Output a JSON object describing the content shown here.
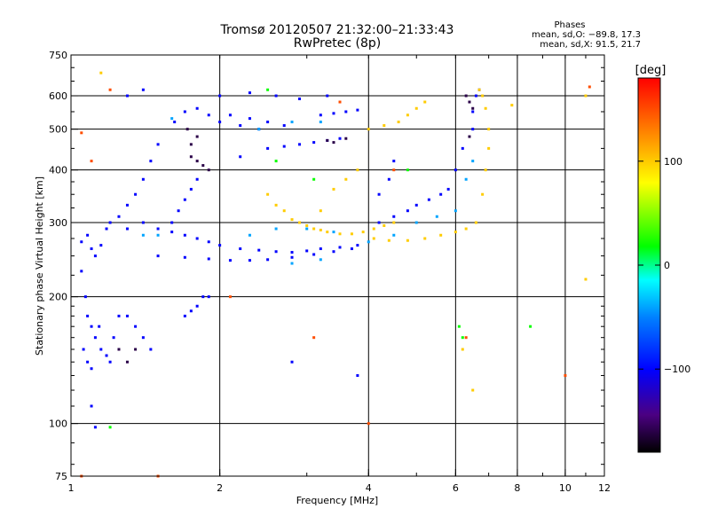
{
  "chart_data": {
    "type": "scatter",
    "title_line1": "Tromsø 20120507 21:32:00–21:33:43",
    "title_line2": "RwPretec (8p)",
    "xlabel": "Frequency [MHz]",
    "ylabel": "Stationary phase Virtual Height [km]",
    "x_scale": "log",
    "y_scale": "log",
    "xlim": [
      1,
      12
    ],
    "ylim": [
      75,
      750
    ],
    "x_ticks": [
      1,
      2,
      4,
      6,
      8,
      10,
      12
    ],
    "x_tick_labels": [
      "1",
      "2",
      "4",
      "6",
      "8",
      "10",
      "12"
    ],
    "y_ticks": [
      75,
      100,
      200,
      300,
      400,
      500,
      600,
      750
    ],
    "y_tick_labels": [
      "75",
      "100",
      "200",
      "300",
      "400",
      "500",
      "600",
      "750"
    ],
    "x_gridlines": [
      2,
      4,
      6,
      8,
      10
    ],
    "y_gridlines": [
      100,
      200,
      300,
      400,
      500,
      600
    ],
    "grid": true,
    "phases_header": "Phases",
    "phases_stats": [
      "mean, sd,O: −89.8, 17.3",
      "mean, sd,X:  91.5, 21.7"
    ],
    "colorbar": {
      "label": "[deg]",
      "range": [
        -180,
        180
      ],
      "ticks": [
        100,
        0,
        -100
      ],
      "tick_labels": [
        "100",
        "0",
        "−100"
      ]
    },
    "series": [
      {
        "color_value": -100,
        "points": [
          [
            1.05,
            270
          ],
          [
            1.08,
            280
          ],
          [
            1.1,
            260
          ],
          [
            1.12,
            250
          ],
          [
            1.15,
            265
          ],
          [
            1.18,
            290
          ],
          [
            1.2,
            300
          ],
          [
            1.25,
            310
          ],
          [
            1.3,
            330
          ],
          [
            1.35,
            350
          ],
          [
            1.4,
            380
          ],
          [
            1.45,
            420
          ],
          [
            1.5,
            460
          ],
          [
            1.05,
            230
          ],
          [
            1.07,
            200
          ],
          [
            1.08,
            180
          ],
          [
            1.1,
            170
          ],
          [
            1.12,
            160
          ],
          [
            1.15,
            150
          ],
          [
            1.18,
            145
          ],
          [
            1.2,
            140
          ],
          [
            1.22,
            160
          ],
          [
            1.25,
            180
          ],
          [
            1.06,
            150
          ],
          [
            1.08,
            140
          ],
          [
            1.1,
            135
          ],
          [
            1.14,
            170
          ],
          [
            1.3,
            180
          ],
          [
            1.35,
            170
          ],
          [
            1.4,
            160
          ],
          [
            1.45,
            150
          ],
          [
            1.3,
            290
          ],
          [
            1.4,
            300
          ],
          [
            1.5,
            290
          ],
          [
            1.6,
            285
          ],
          [
            1.7,
            280
          ],
          [
            1.8,
            275
          ],
          [
            1.9,
            270
          ],
          [
            2.0,
            265
          ],
          [
            2.2,
            260
          ],
          [
            2.4,
            258
          ],
          [
            2.6,
            256
          ],
          [
            2.8,
            255
          ],
          [
            3.0,
            257
          ],
          [
            3.2,
            260
          ],
          [
            3.5,
            262
          ],
          [
            3.8,
            265
          ],
          [
            1.5,
            250
          ],
          [
            1.7,
            248
          ],
          [
            1.9,
            246
          ],
          [
            2.1,
            244
          ],
          [
            2.3,
            244
          ],
          [
            2.5,
            245
          ],
          [
            2.8,
            248
          ],
          [
            3.1,
            252
          ],
          [
            3.4,
            256
          ],
          [
            3.7,
            260
          ],
          [
            1.6,
            300
          ],
          [
            1.65,
            320
          ],
          [
            1.7,
            340
          ],
          [
            1.75,
            360
          ],
          [
            1.8,
            380
          ],
          [
            1.62,
            520
          ],
          [
            1.7,
            550
          ],
          [
            1.8,
            560
          ],
          [
            1.9,
            540
          ],
          [
            2.0,
            520
          ],
          [
            2.2,
            510
          ],
          [
            2.4,
            500
          ],
          [
            2.1,
            540
          ],
          [
            2.3,
            530
          ],
          [
            2.5,
            520
          ],
          [
            2.7,
            510
          ],
          [
            2.5,
            450
          ],
          [
            2.7,
            455
          ],
          [
            2.9,
            460
          ],
          [
            3.1,
            465
          ],
          [
            3.3,
            470
          ],
          [
            3.5,
            475
          ],
          [
            3.2,
            540
          ],
          [
            3.4,
            545
          ],
          [
            3.6,
            550
          ],
          [
            3.8,
            555
          ],
          [
            2.2,
            430
          ],
          [
            2.0,
            600
          ],
          [
            2.3,
            610
          ],
          [
            2.6,
            600
          ],
          [
            2.9,
            590
          ],
          [
            3.3,
            600
          ],
          [
            4.2,
            300
          ],
          [
            4.5,
            310
          ],
          [
            4.8,
            320
          ],
          [
            5.0,
            330
          ],
          [
            5.3,
            340
          ],
          [
            5.6,
            350
          ],
          [
            5.8,
            360
          ],
          [
            6.0,
            400
          ],
          [
            6.2,
            450
          ],
          [
            6.5,
            500
          ],
          [
            6.5,
            550
          ],
          [
            6.6,
            600
          ],
          [
            6.7,
            620
          ],
          [
            4.2,
            350
          ],
          [
            4.4,
            380
          ],
          [
            4.5,
            420
          ],
          [
            1.7,
            180
          ],
          [
            1.75,
            185
          ],
          [
            1.8,
            190
          ],
          [
            1.9,
            200
          ],
          [
            1.3,
            600
          ],
          [
            1.4,
            620
          ],
          [
            2.8,
            140
          ],
          [
            3.8,
            130
          ],
          [
            1.1,
            110
          ],
          [
            1.12,
            98
          ],
          [
            1.85,
            200
          ]
        ]
      },
      {
        "color_value": -160,
        "points": [
          [
            1.75,
            430
          ],
          [
            1.8,
            420
          ],
          [
            1.85,
            410
          ],
          [
            1.9,
            400
          ],
          [
            1.75,
            460
          ],
          [
            1.8,
            480
          ],
          [
            1.72,
            500
          ],
          [
            3.3,
            470
          ],
          [
            3.4,
            465
          ],
          [
            3.6,
            475
          ],
          [
            6.3,
            600
          ],
          [
            6.4,
            580
          ],
          [
            6.5,
            560
          ],
          [
            6.4,
            480
          ],
          [
            1.25,
            150
          ],
          [
            1.3,
            140
          ],
          [
            1.35,
            150
          ]
        ]
      },
      {
        "color_value": -40,
        "points": [
          [
            1.4,
            280
          ],
          [
            1.5,
            280
          ],
          [
            2.3,
            280
          ],
          [
            2.6,
            290
          ],
          [
            3.0,
            290
          ],
          [
            3.4,
            285
          ],
          [
            2.8,
            240
          ],
          [
            3.2,
            245
          ],
          [
            4.0,
            270
          ],
          [
            4.5,
            280
          ],
          [
            5.0,
            300
          ],
          [
            5.5,
            310
          ],
          [
            6.0,
            320
          ],
          [
            6.3,
            380
          ],
          [
            6.5,
            420
          ],
          [
            2.4,
            500
          ],
          [
            2.8,
            520
          ],
          [
            3.2,
            520
          ],
          [
            1.6,
            530
          ]
        ]
      },
      {
        "color_value": 20,
        "points": [
          [
            2.6,
            420
          ],
          [
            3.1,
            380
          ],
          [
            4.8,
            400
          ],
          [
            6.1,
            170
          ],
          [
            6.2,
            160
          ],
          [
            8.5,
            170
          ],
          [
            1.2,
            98
          ],
          [
            2.5,
            620
          ]
        ]
      },
      {
        "color_value": 100,
        "points": [
          [
            2.5,
            350
          ],
          [
            2.7,
            320
          ],
          [
            2.9,
            300
          ],
          [
            3.1,
            290
          ],
          [
            3.3,
            285
          ],
          [
            3.5,
            282
          ],
          [
            3.7,
            282
          ],
          [
            3.9,
            285
          ],
          [
            4.1,
            290
          ],
          [
            4.3,
            295
          ],
          [
            4.5,
            300
          ],
          [
            2.6,
            330
          ],
          [
            2.8,
            305
          ],
          [
            3.0,
            295
          ],
          [
            3.2,
            288
          ],
          [
            4.0,
            500
          ],
          [
            4.3,
            510
          ],
          [
            4.6,
            520
          ],
          [
            4.8,
            540
          ],
          [
            5.0,
            560
          ],
          [
            5.2,
            580
          ],
          [
            6.7,
            620
          ],
          [
            6.8,
            600
          ],
          [
            6.9,
            560
          ],
          [
            7.0,
            500
          ],
          [
            7.0,
            450
          ],
          [
            6.9,
            400
          ],
          [
            6.8,
            350
          ],
          [
            6.6,
            300
          ],
          [
            6.3,
            290
          ],
          [
            6.0,
            285
          ],
          [
            5.6,
            280
          ],
          [
            5.2,
            275
          ],
          [
            4.8,
            272
          ],
          [
            4.4,
            272
          ],
          [
            4.1,
            275
          ],
          [
            3.8,
            400
          ],
          [
            3.6,
            380
          ],
          [
            3.4,
            360
          ],
          [
            3.2,
            320
          ],
          [
            1.15,
            680
          ],
          [
            6.2,
            150
          ],
          [
            6.5,
            120
          ],
          [
            11,
            600
          ],
          [
            11,
            220
          ],
          [
            7.8,
            570
          ]
        ]
      },
      {
        "color_value": 150,
        "points": [
          [
            1.05,
            490
          ],
          [
            1.1,
            420
          ],
          [
            1.2,
            620
          ],
          [
            3.5,
            580
          ],
          [
            4.5,
            400
          ],
          [
            6.3,
            160
          ],
          [
            10,
            130
          ],
          [
            4.0,
            100
          ],
          [
            2.1,
            200
          ],
          [
            1.05,
            75
          ],
          [
            3.1,
            160
          ],
          [
            1.5,
            75
          ],
          [
            11.2,
            630
          ]
        ]
      }
    ]
  }
}
